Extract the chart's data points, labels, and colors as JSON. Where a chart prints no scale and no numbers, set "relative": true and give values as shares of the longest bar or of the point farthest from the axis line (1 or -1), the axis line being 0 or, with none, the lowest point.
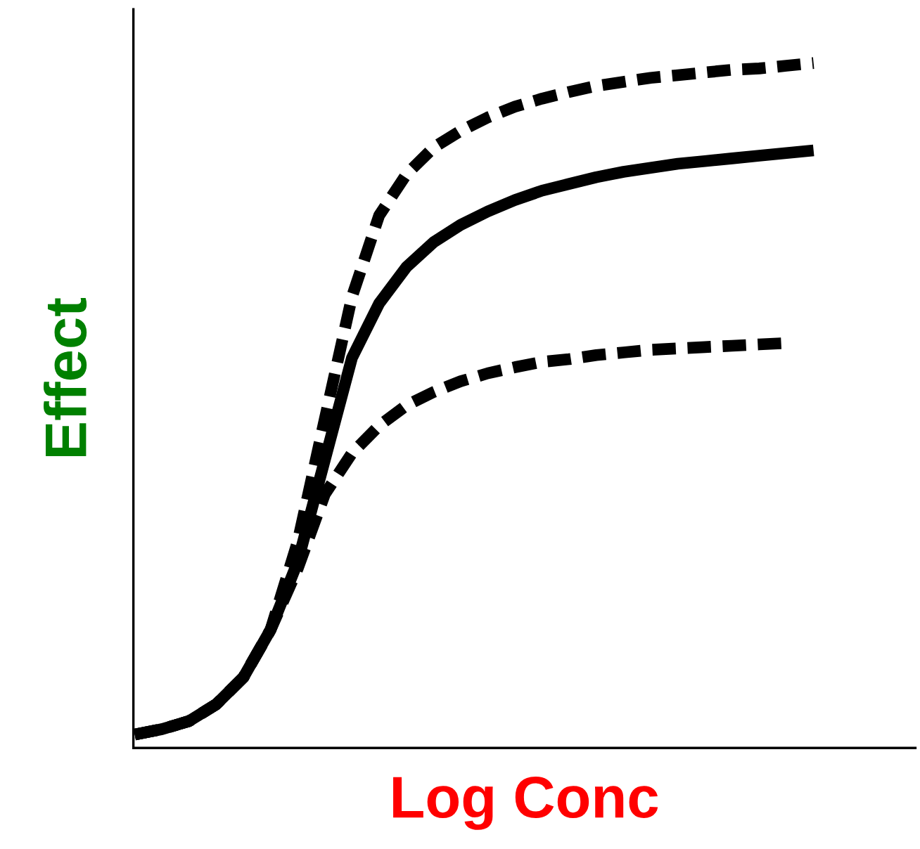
{
  "chart_data": {
    "type": "line",
    "relative": true,
    "xlabel": "Log Conc",
    "ylabel": "Effect",
    "tick_labels": false,
    "categories": [
      null,
      null,
      null,
      null,
      null,
      null,
      null,
      null,
      null,
      null,
      null,
      null,
      null,
      null,
      null,
      null,
      null,
      null,
      null,
      null,
      null,
      null,
      null,
      null,
      null,
      null
    ],
    "series": [
      {
        "color": "#000000",
        "line_style": "dashed",
        "values": [
          0,
          0.008,
          0.02,
          0.045,
          0.085,
          0.156,
          0.287,
          0.47,
          0.652,
          0.773,
          0.834,
          0.874,
          0.899,
          0.919,
          0.935,
          0.947,
          0.957,
          0.966,
          0.972,
          0.978,
          0.982,
          0.986,
          0.99,
          0.992,
          0.996,
          1
        ]
      },
      {
        "color": "#000000",
        "line_style": "solid",
        "values": [
          0,
          0.008,
          0.02,
          0.045,
          0.085,
          0.156,
          0.257,
          0.409,
          0.561,
          0.642,
          0.696,
          0.733,
          0.759,
          0.779,
          0.796,
          0.81,
          0.82,
          0.83,
          0.838,
          0.844,
          0.85,
          0.854,
          0.858,
          0.862,
          0.866,
          0.87
        ]
      },
      {
        "color": "#000000",
        "line_style": "dashed",
        "values": [
          0,
          0.008,
          0.02,
          0.045,
          0.085,
          0.156,
          0.247,
          0.358,
          0.419,
          0.46,
          0.49,
          0.51,
          0.526,
          0.538,
          0.547,
          0.555,
          0.559,
          0.565,
          0.569,
          0.573,
          0.575,
          0.577,
          0.579,
          0.581,
          0.583,
          null
        ]
      }
    ]
  }
}
